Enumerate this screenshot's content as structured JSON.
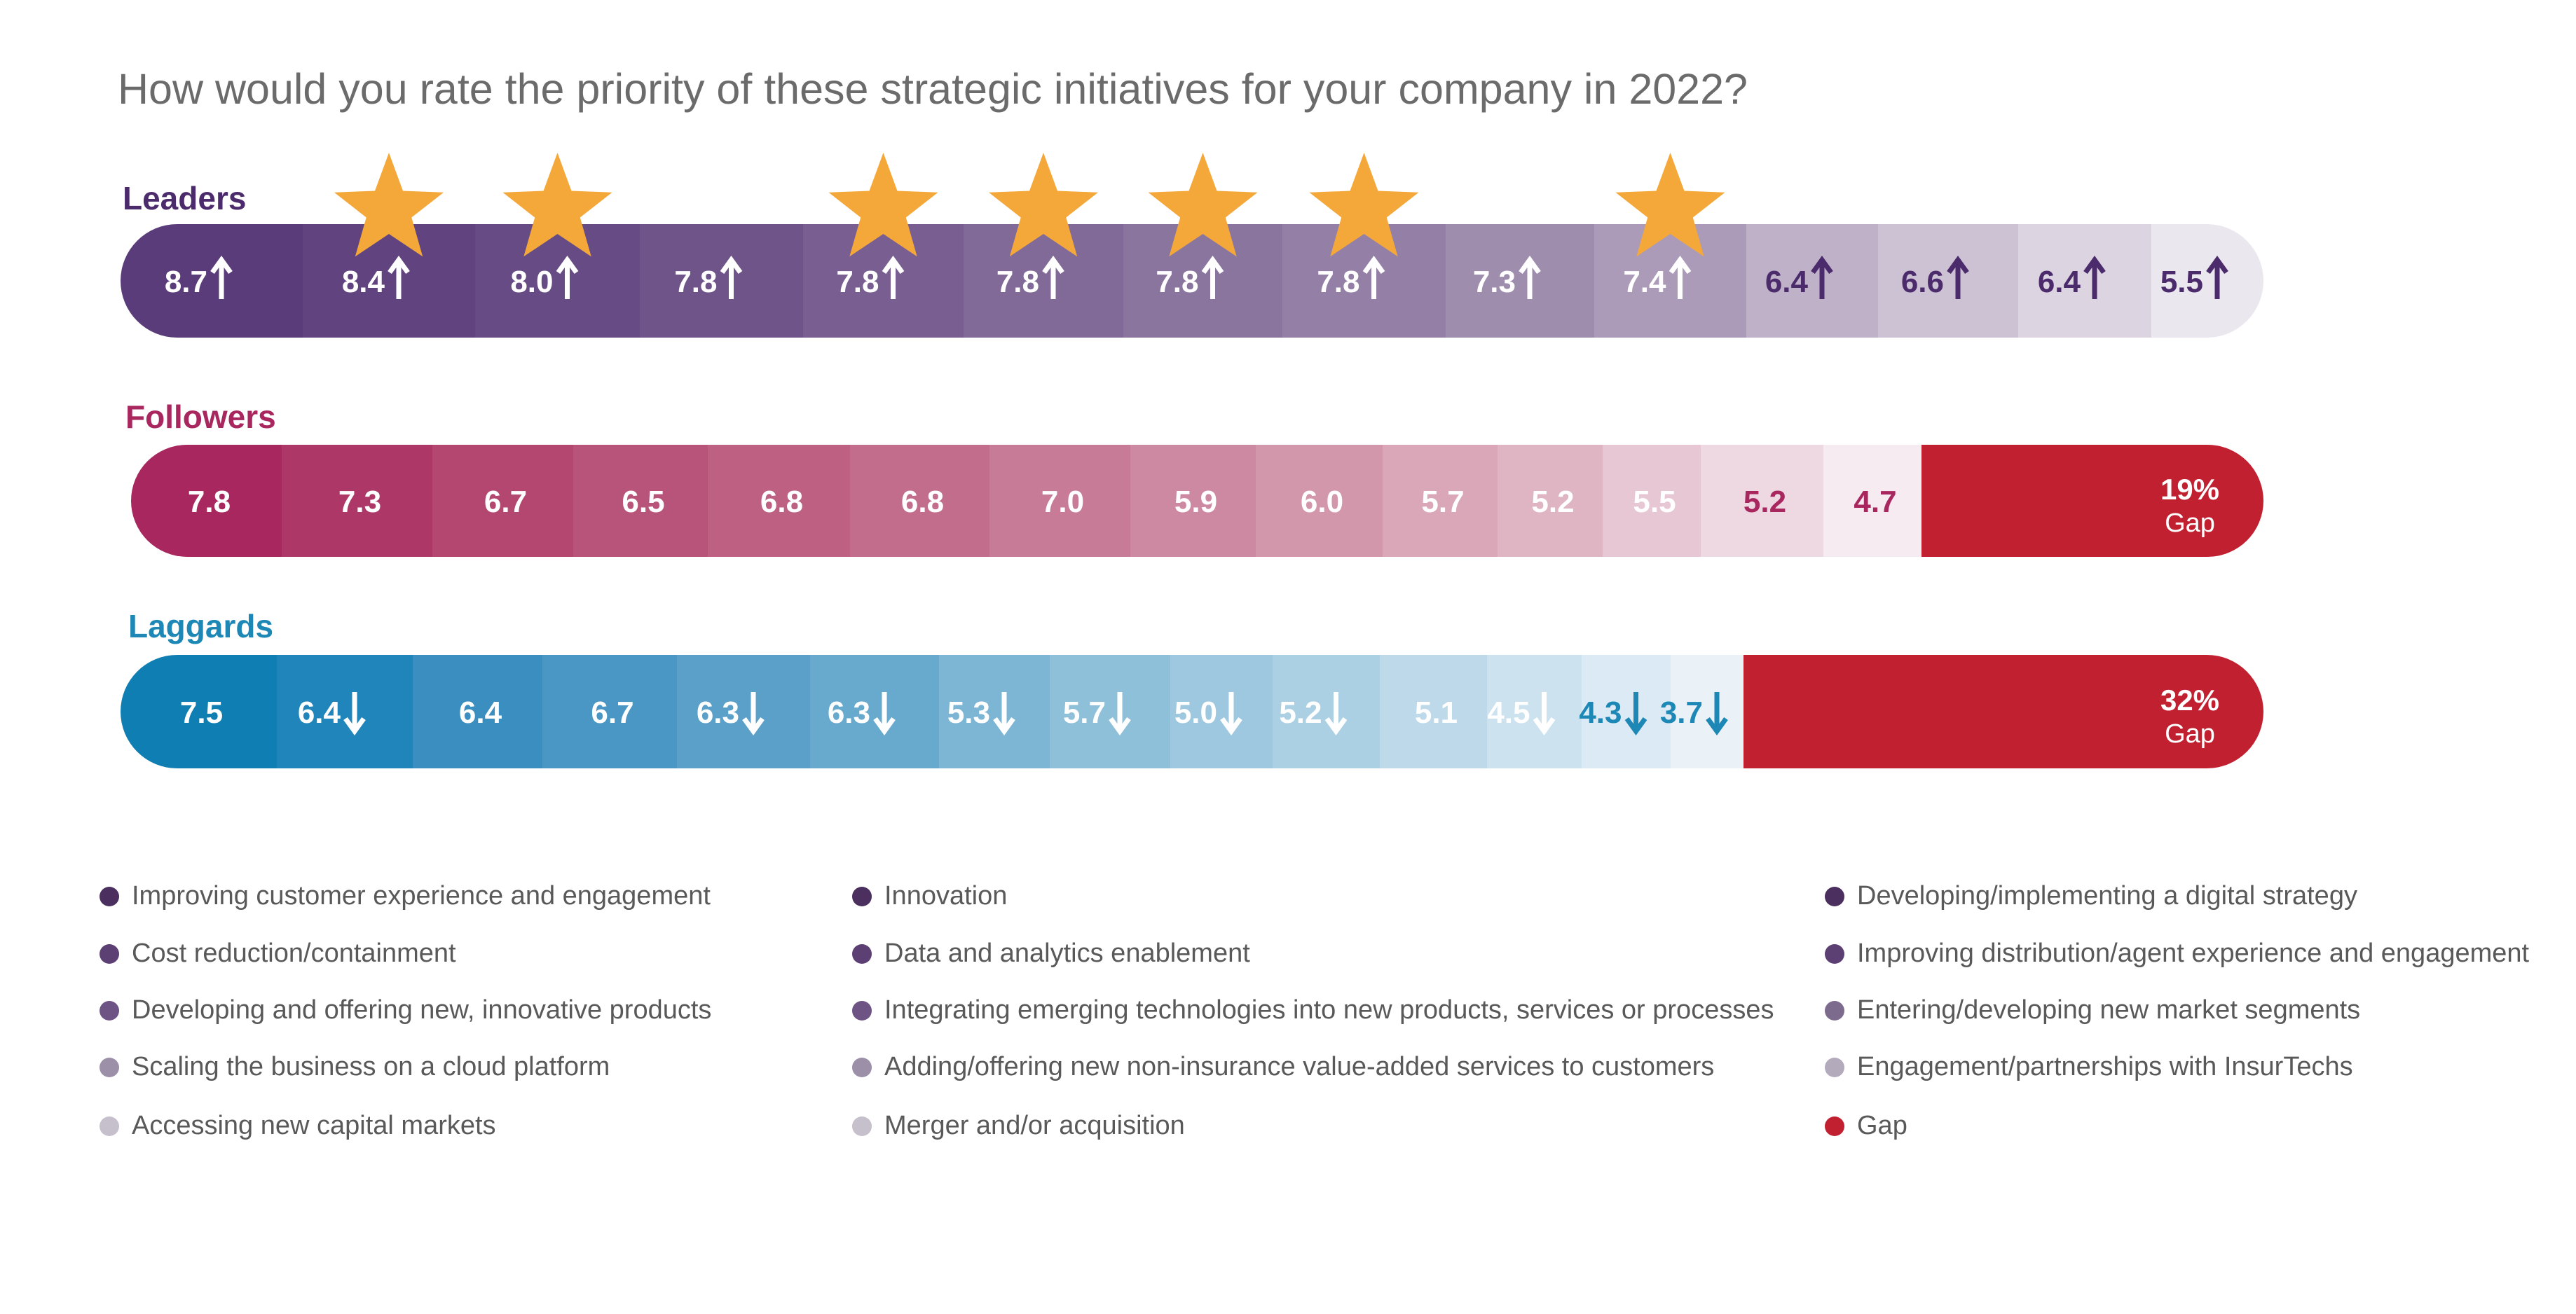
{
  "chart_data": {
    "type": "bar",
    "title": "How would you rate the priority of these strategic initiatives for your company in 2022?",
    "categories": [
      "Improving customer experience and engagement",
      "Cost reduction/containment",
      "Developing and offering new, innovative products",
      "Scaling the business on a cloud platform",
      "Accessing new capital markets",
      "Innovation",
      "Data and analytics enablement",
      "Integrating emerging technologies into new products, services or processes",
      "Adding/offering new non-insurance value-added services to customers",
      "Merger and/or acquisition",
      "Developing/implementing a digital strategy",
      "Improving distribution/agent experience and engagement",
      "Entering/developing new market segments",
      "Engagement/partnerships with InsurTechs"
    ],
    "series": [
      {
        "name": "Leaders",
        "values": [
          "8.7",
          "8.4",
          "8.0",
          "7.8",
          "7.8",
          "7.8",
          "7.8",
          "7.8",
          "7.3",
          "7.4",
          "6.4",
          "6.6",
          "6.4",
          "5.5"
        ],
        "arrows": [
          "up",
          "up",
          "up",
          "up",
          "up",
          "up",
          "up",
          "up",
          "up",
          "up",
          "up",
          "up",
          "up",
          "up"
        ],
        "stars": [
          false,
          true,
          true,
          false,
          true,
          true,
          true,
          true,
          false,
          true,
          false,
          false,
          false,
          false
        ],
        "gap": ""
      },
      {
        "name": "Followers",
        "values": [
          "7.8",
          "7.3",
          "6.7",
          "6.5",
          "6.8",
          "6.8",
          "7.0",
          "5.9",
          "6.0",
          "5.7",
          "5.2",
          "5.5",
          "5.2",
          "4.7"
        ],
        "arrows": [
          "",
          "",
          "",
          "",
          "",
          "",
          "",
          "",
          "",
          "",
          "",
          "",
          "",
          ""
        ],
        "stars": [],
        "gap": "19%",
        "gap_label": "Gap"
      },
      {
        "name": "Laggards",
        "values": [
          "7.5",
          "6.4",
          "6.4",
          "6.7",
          "6.3",
          "6.3",
          "5.3",
          "5.7",
          "5.0",
          "5.2",
          "5.1",
          "4.5",
          "4.3",
          "3.7"
        ],
        "arrows": [
          "",
          "down",
          "",
          "",
          "down",
          "down",
          "down",
          "down",
          "down",
          "down",
          "",
          "down",
          "down",
          "down"
        ],
        "stars": [],
        "gap": "32%",
        "gap_label": "Gap"
      }
    ],
    "legend": [
      "Improving customer experience and engagement",
      "Cost reduction/containment",
      "Developing and offering new, innovative products",
      "Scaling the business on a cloud platform",
      "Accessing new capital markets",
      "Innovation",
      "Data and analytics enablement",
      "Integrating emerging technologies into new products, services or processes",
      "Adding/offering new non-insurance value-added services to customers",
      "Merger and/or acquisition",
      "Developing/implementing a digital strategy",
      "Improving distribution/agent experience and engagement",
      "Entering/developing new market segments",
      "Engagement/partnerships with InsurTechs",
      "Gap"
    ],
    "legend_colors": [
      "#4a2f5f",
      "#5c3f73",
      "#6d5485",
      "#9c8fa8",
      "#c6bfcc",
      "#4a2f5f",
      "#5c3f73",
      "#6d5485",
      "#9c8fa8",
      "#c6bfcc",
      "#4a2f5f",
      "#5c3f73",
      "#7d6b8d",
      "#b3aabb",
      "#c0202f"
    ],
    "colors": {
      "leaders": [
        "#5a3c7a",
        "#60437f",
        "#674b84",
        "#6f548a",
        "#785e91",
        "#816a98",
        "#8a759f",
        "#9480a6",
        "#9f8dae",
        "#ab9bb8",
        "#bfb1c8",
        "#ccc2d4",
        "#dcd4e1",
        "#ebe7ef"
      ],
      "followers": [
        "#a8275e",
        "#ad3868",
        "#b34770",
        "#b85479",
        "#bd6081",
        "#c26d8b",
        "#c77b96",
        "#cd89a1",
        "#d397ac",
        "#d9a7b8",
        "#dfb5c4",
        "#e6c7d3",
        "#eed8e1",
        "#f6ebf0"
      ],
      "laggards": [
        "#0f7fb3",
        "#2085bb",
        "#3b8fc0",
        "#4a97c5",
        "#5aa0c9",
        "#68a9ce",
        "#7db5d5",
        "#8fc0da",
        "#9ec8df",
        "#acd0e3",
        "#bed9e9",
        "#cde2ef",
        "#dbeaf4",
        "#eaf2f8"
      ],
      "gap": "#c0202f",
      "star": "#f4a83a",
      "leaders_label": "#4b2b6b",
      "followers_label": "#a8275e",
      "laggards_label": "#1d87b6"
    }
  }
}
